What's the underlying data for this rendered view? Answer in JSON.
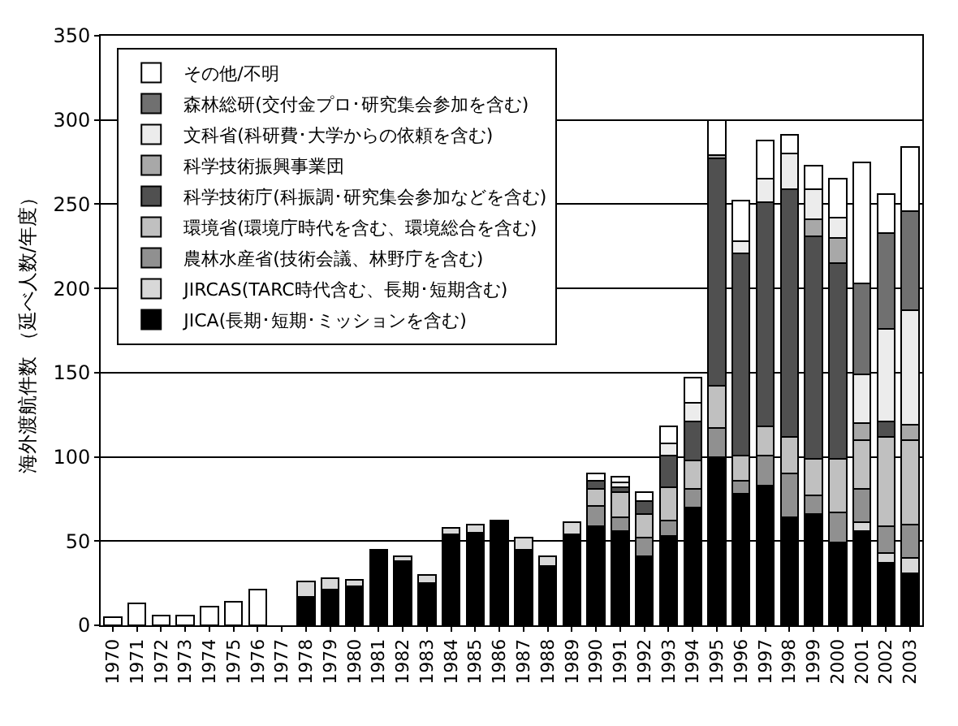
{
  "chart_data": {
    "type": "bar",
    "stacked": true,
    "ylabel": "海外渡航件数 （延べ人数/年度）",
    "categories": [
      "1970",
      "1971",
      "1972",
      "1973",
      "1974",
      "1975",
      "1976",
      "1977",
      "1978",
      "1979",
      "1980",
      "1981",
      "1982",
      "1983",
      "1984",
      "1985",
      "1986",
      "1987",
      "1988",
      "1989",
      "1990",
      "1991",
      "1992",
      "1993",
      "1994",
      "1995",
      "1996",
      "1997",
      "1998",
      "1999",
      "2000",
      "2001",
      "2002",
      "2003"
    ],
    "series": [
      {
        "name": "JICA(長期･短期･ミッションを含む)",
        "color": "#000000",
        "values": [
          null,
          null,
          null,
          null,
          null,
          null,
          null,
          null,
          17,
          21,
          23,
          45,
          38,
          25,
          54,
          55,
          62,
          45,
          35,
          54,
          59,
          56,
          41,
          53,
          70,
          100,
          78,
          83,
          64,
          66,
          49,
          56,
          37,
          31
        ]
      },
      {
        "name": "JIRCAS(TARC時代含む、長期･短期含む)",
        "color": "#d8d8d8",
        "values": [
          null,
          null,
          null,
          null,
          null,
          null,
          null,
          null,
          9,
          7,
          4,
          null,
          3,
          5,
          4,
          5,
          null,
          7,
          6,
          7,
          null,
          null,
          null,
          null,
          null,
          null,
          null,
          null,
          null,
          null,
          null,
          5,
          6,
          9
        ]
      },
      {
        "name": "農林水産省(技術会議、林野庁を含む)",
        "color": "#909090",
        "values": [
          null,
          null,
          null,
          null,
          null,
          null,
          null,
          null,
          null,
          null,
          null,
          null,
          null,
          null,
          null,
          null,
          null,
          null,
          null,
          null,
          12,
          8,
          11,
          9,
          11,
          17,
          8,
          18,
          26,
          11,
          18,
          20,
          16,
          20
        ]
      },
      {
        "name": "環境省(環境庁時代を含む、環境総合を含む)",
        "color": "#c0c0c0",
        "values": [
          null,
          null,
          null,
          null,
          null,
          null,
          null,
          null,
          null,
          null,
          null,
          null,
          null,
          null,
          null,
          null,
          null,
          null,
          null,
          null,
          10,
          15,
          14,
          20,
          17,
          25,
          15,
          17,
          22,
          22,
          32,
          29,
          53,
          50
        ]
      },
      {
        "name": "科学技術庁(科振調･研究集会参加などを含む)",
        "color": "#505050",
        "values": [
          null,
          null,
          null,
          null,
          null,
          null,
          null,
          null,
          null,
          null,
          null,
          null,
          null,
          null,
          null,
          null,
          null,
          null,
          null,
          null,
          5,
          3,
          8,
          19,
          23,
          135,
          120,
          133,
          147,
          132,
          116,
          null,
          9,
          null
        ]
      },
      {
        "name": "科学技術振興事業団",
        "color": "#a8a8a8",
        "values": [
          null,
          null,
          null,
          null,
          null,
          null,
          null,
          null,
          null,
          null,
          null,
          null,
          null,
          null,
          null,
          null,
          null,
          null,
          null,
          null,
          null,
          null,
          null,
          null,
          null,
          2,
          null,
          null,
          null,
          10,
          15,
          10,
          null,
          9
        ]
      },
      {
        "name": "文科省(科研費･大学からの依頼を含む)",
        "color": "#ececec",
        "values": [
          null,
          null,
          null,
          null,
          null,
          null,
          null,
          null,
          null,
          null,
          null,
          null,
          null,
          null,
          null,
          null,
          null,
          null,
          null,
          null,
          null,
          3,
          null,
          7,
          11,
          null,
          7,
          14,
          21,
          18,
          12,
          29,
          55,
          68
        ]
      },
      {
        "name": "森林総研(交付金プロ･研究集会参加を含む)",
        "color": "#707070",
        "values": [
          null,
          null,
          null,
          null,
          null,
          null,
          null,
          null,
          null,
          null,
          null,
          null,
          null,
          null,
          null,
          null,
          null,
          null,
          null,
          null,
          null,
          null,
          null,
          null,
          null,
          null,
          null,
          null,
          null,
          null,
          null,
          54,
          57,
          59
        ]
      },
      {
        "name": "その他/不明",
        "color": "#ffffff",
        "values": [
          5,
          13,
          6,
          6,
          11,
          14,
          21,
          null,
          null,
          null,
          null,
          null,
          null,
          null,
          null,
          null,
          null,
          null,
          null,
          null,
          4,
          3,
          5,
          10,
          15,
          21,
          24,
          23,
          11,
          14,
          23,
          72,
          23,
          38
        ]
      }
    ],
    "ylim": [
      0,
      350
    ],
    "yticks": [
      0,
      50,
      100,
      150,
      200,
      250,
      300,
      350
    ],
    "grid": "y",
    "legend": "top left"
  }
}
